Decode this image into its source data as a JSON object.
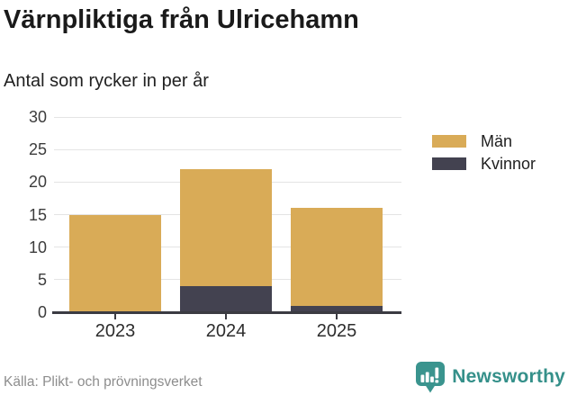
{
  "header": {
    "title": "Värnpliktiga från Ulricehamn",
    "subtitle": "Antal som rycker in per år"
  },
  "chart_data": {
    "type": "bar",
    "stacked": true,
    "title": "Värnpliktiga från Ulricehamn",
    "subtitle": "Antal som rycker in per år",
    "categories": [
      "2023",
      "2024",
      "2025"
    ],
    "series": [
      {
        "name": "Män",
        "color": "#d9ab57",
        "values": [
          15,
          18,
          15
        ]
      },
      {
        "name": "Kvinnor",
        "color": "#434250",
        "values": [
          0,
          4,
          1
        ]
      }
    ],
    "stack_totals": [
      15,
      22,
      16
    ],
    "xlabel": "",
    "ylabel": "",
    "ylim": [
      0,
      30
    ],
    "yticks": [
      0,
      5,
      10,
      15,
      20,
      25,
      30
    ],
    "grid": true,
    "legend_position": "right",
    "colors": {
      "grid": "#e4e4e4",
      "axis": "#3b3b42",
      "tick_label": "#3c3c3c"
    }
  },
  "footer": {
    "source": "Källa: Plikt- och prövningsverket",
    "brand": "Newsworthy",
    "brand_color": "#35908a",
    "brand_icon": "bar-chart-speech-bubble-icon",
    "brand_icon_color": "#3a948e"
  }
}
